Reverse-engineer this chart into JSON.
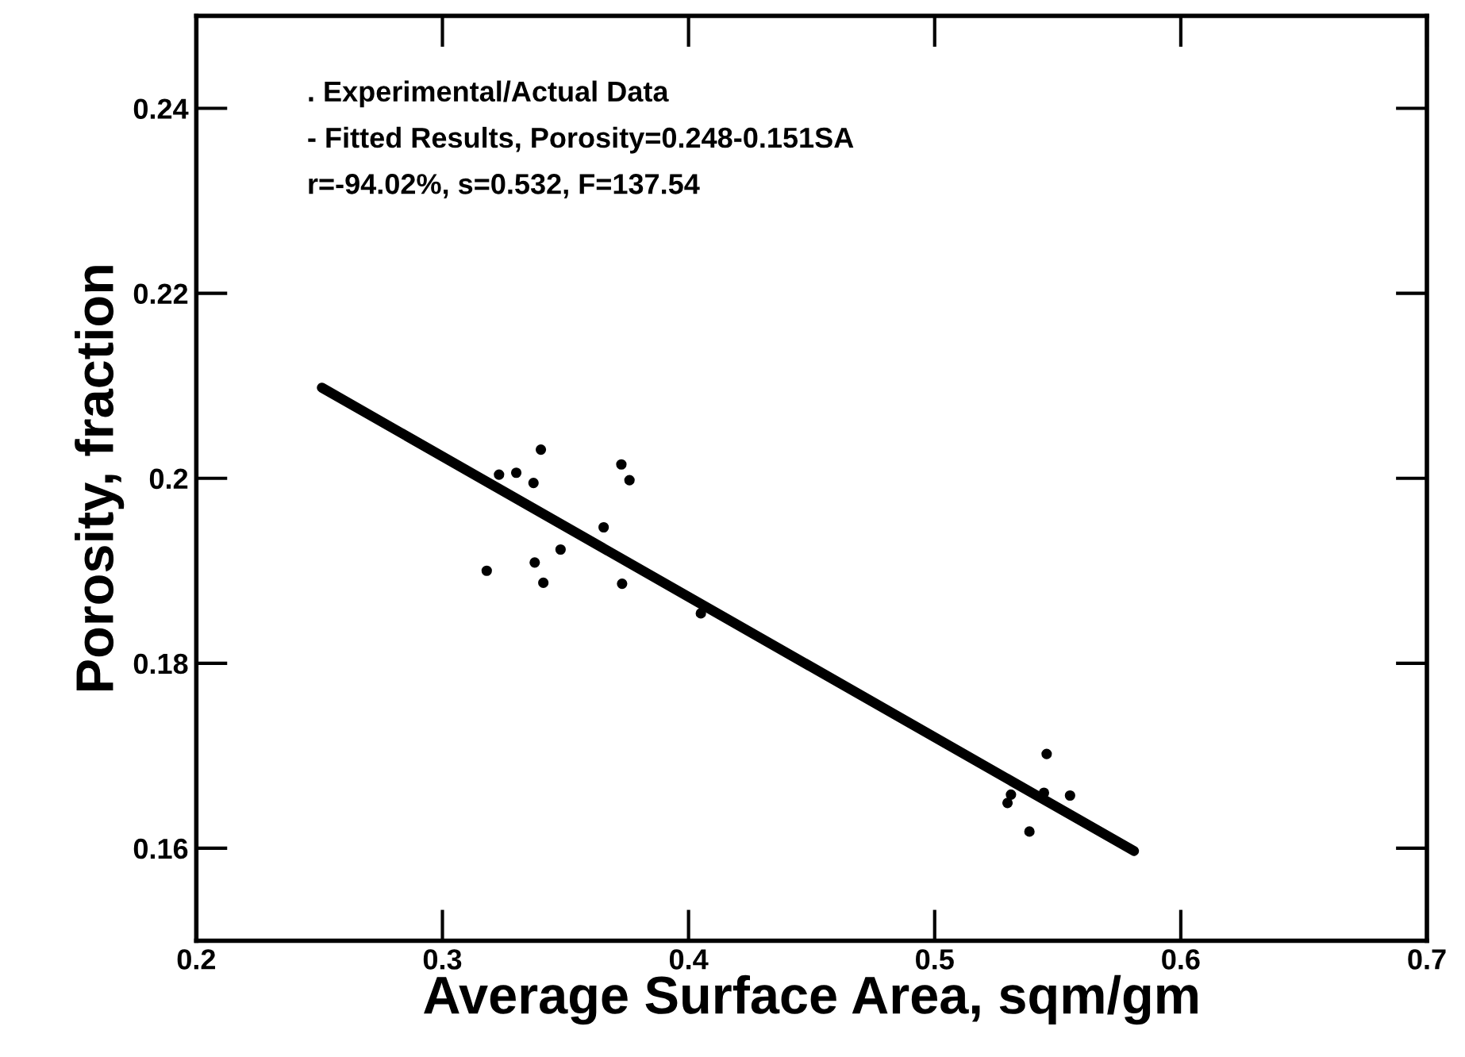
{
  "chart_data": {
    "type": "scatter",
    "xlabel": "Average Surface Area, sqm/gm",
    "ylabel": "Porosity, fraction",
    "annotations": [
      ". Experimental/Actual Data",
      "- Fitted Results, Porosity=0.248-0.151SA",
      "r=-94.02%, s=0.532, F=137.54"
    ],
    "series": [
      {
        "color": "#000000",
        "marker": "circle",
        "x": [
          0.318,
          0.323,
          0.33,
          0.337,
          0.34,
          0.3375,
          0.341,
          0.348,
          0.3655,
          0.3727,
          0.376,
          0.373,
          0.405,
          0.5296,
          0.531,
          0.5455,
          0.5444,
          0.5385,
          0.555
        ],
        "values": [
          0.19,
          0.2004,
          0.2006,
          0.1995,
          0.2031,
          0.1909,
          0.1887,
          0.1923,
          0.1947,
          0.2015,
          0.1998,
          0.1886,
          0.1854,
          0.1649,
          0.1658,
          0.1702,
          0.166,
          0.1618,
          0.1657
        ]
      },
      {
        "type": "line",
        "color": "#000000",
        "line_style": "solid",
        "marker": "none",
        "x": [
          0.251,
          0.581
        ],
        "values": [
          0.2098,
          0.1597
        ]
      }
    ],
    "xlim": [
      0.2,
      0.7
    ],
    "xticks": [
      0.2,
      0.3,
      0.4,
      0.5,
      0.6,
      0.7
    ],
    "ylim": [
      0.15,
      0.25
    ],
    "yticks": [
      0.16,
      0.18,
      0.2,
      0.22,
      0.24
    ],
    "grid": false,
    "legend": false
  }
}
